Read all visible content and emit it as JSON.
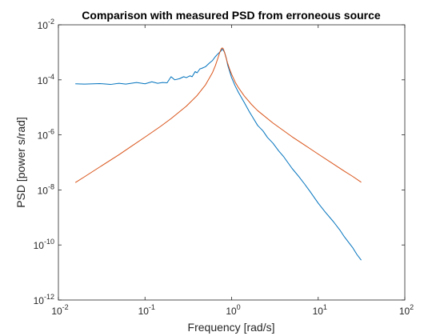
{
  "chart_data": {
    "type": "line",
    "title": "Comparison with measured PSD from erroneous source",
    "xlabel": "Frequency [rad/s]",
    "ylabel": "PSD [power s/rad]",
    "xscale": "log",
    "yscale": "log",
    "xlim": [
      0.01,
      100
    ],
    "ylim": [
      1e-12,
      0.01
    ],
    "grid": false,
    "box": true,
    "x_ticks": [
      {
        "base": "10",
        "exp": "-2",
        "value": 0.01
      },
      {
        "base": "10",
        "exp": "-1",
        "value": 0.1
      },
      {
        "base": "10",
        "exp": "0",
        "value": 1
      },
      {
        "base": "10",
        "exp": "1",
        "value": 10
      },
      {
        "base": "10",
        "exp": "2",
        "value": 100
      }
    ],
    "y_ticks": [
      {
        "base": "10",
        "exp": "-12",
        "value": 1e-12
      },
      {
        "base": "10",
        "exp": "-10",
        "value": 1e-10
      },
      {
        "base": "10",
        "exp": "-8",
        "value": 1e-08
      },
      {
        "base": "10",
        "exp": "-6",
        "value": 1e-06
      },
      {
        "base": "10",
        "exp": "-4",
        "value": 0.0001
      },
      {
        "base": "10",
        "exp": "-2",
        "value": 0.01
      }
    ],
    "series": [
      {
        "color": "#0072BD",
        "x": [
          0.0157,
          0.02,
          0.03,
          0.04,
          0.05,
          0.06,
          0.08,
          0.1,
          0.12,
          0.14,
          0.16,
          0.18,
          0.2,
          0.22,
          0.25,
          0.28,
          0.3,
          0.33,
          0.35,
          0.38,
          0.4,
          0.43,
          0.45,
          0.5,
          0.55,
          0.6,
          0.65,
          0.7,
          0.75,
          0.78,
          0.8,
          0.83,
          0.87,
          0.9,
          1.0,
          1.1,
          1.2,
          1.4,
          1.6,
          1.8,
          2.0,
          2.3,
          2.6,
          3.0,
          3.5,
          4.0,
          5.0,
          6.0,
          7.0,
          8.0,
          10.0,
          12.0,
          15.0,
          18.0,
          20.0,
          25.0,
          28.0,
          31.4
        ],
        "y": [
          7.2e-05,
          7e-05,
          7.3e-05,
          6.8e-05,
          7.5e-05,
          7e-05,
          8e-05,
          7.2e-05,
          8.5e-05,
          7.5e-05,
          8e-05,
          7.8e-05,
          0.00013,
          0.0001,
          0.00011,
          0.00013,
          0.00012,
          0.00014,
          0.00013,
          0.0002,
          0.00018,
          0.00025,
          0.00026,
          0.0003,
          0.0004,
          0.0005,
          0.0007,
          0.0009,
          0.0011,
          0.0013,
          0.0012,
          0.001,
          0.0006,
          0.00035,
          0.00012,
          6e-05,
          3.5e-05,
          1.5e-05,
          7e-06,
          3.8e-06,
          2.2e-06,
          1.4e-06,
          8e-07,
          5e-07,
          2.6e-07,
          1.6e-07,
          6e-08,
          3e-08,
          1.6e-08,
          9e-09,
          3.3e-09,
          1.6e-09,
          7e-10,
          3.3e-10,
          2e-10,
          8e-11,
          4.5e-11,
          2.8e-11
        ]
      },
      {
        "color": "#D95319",
        "x": [
          0.0157,
          0.02,
          0.03,
          0.05,
          0.07,
          0.1,
          0.15,
          0.2,
          0.3,
          0.4,
          0.5,
          0.6,
          0.65,
          0.7,
          0.73,
          0.76,
          0.78,
          0.8,
          0.82,
          0.85,
          0.9,
          0.95,
          1.0,
          1.1,
          1.2,
          1.4,
          1.7,
          2.0,
          3.0,
          5.0,
          8.0,
          10.0,
          15.0,
          20.0,
          25.0,
          31.4
        ],
        "y": [
          1.85e-08,
          3e-08,
          6.8e-08,
          1.9e-07,
          3.9e-07,
          8.3e-07,
          2e-06,
          3.9e-06,
          1.1e-05,
          2.7e-05,
          6.6e-05,
          0.00018,
          0.00033,
          0.00066,
          0.001,
          0.00135,
          0.00145,
          0.00135,
          0.0011,
          0.00075,
          0.0004,
          0.00024,
          0.00016,
          8.3e-05,
          5.2e-05,
          2.6e-05,
          1.27e-05,
          7.6e-06,
          2.7e-06,
          8.5e-07,
          3.2e-07,
          2e-07,
          8.7e-08,
          4.8e-08,
          3.1e-08,
          1.9e-08
        ]
      }
    ]
  }
}
